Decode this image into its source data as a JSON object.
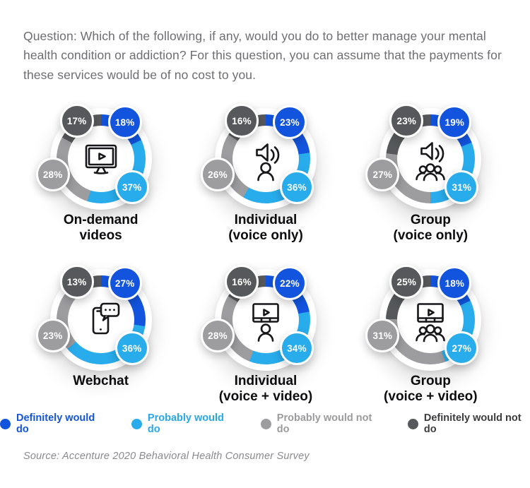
{
  "question": "Question: Which of the following, if any, would you do to better manage your mental health condition or addiction? For this question, you can assume that the payments for these services would be of no cost to you.",
  "source": "Source: Accenture 2020 Behavioral Health Consumer Survey",
  "colors": {
    "definitely_would_do": "#1254dd",
    "probably_would_do": "#29acec",
    "probably_would_not_do": "#9d9da0",
    "definitely_would_not_do": "#57585b"
  },
  "legend": [
    {
      "label": "Definitely would do",
      "color": "#1254dd",
      "text_color": "#1254dd"
    },
    {
      "label": "Probably would do",
      "color": "#29acec",
      "text_color": "#29a7e8"
    },
    {
      "label": "Probably would not do",
      "color": "#9d9da0",
      "text_color": "#9b9b9e"
    },
    {
      "label": "Definitely would not do",
      "color": "#57585b",
      "text_color": "#3c3c3f"
    }
  ],
  "chart_data": {
    "type": "pie",
    "subtype": "donut-grid",
    "unit": "percent",
    "segment_order": [
      "definitely_would_do",
      "probably_would_do",
      "probably_would_not_do",
      "definitely_would_not_do"
    ],
    "segment_labels": [
      "Definitely would do",
      "Probably would do",
      "Probably would not do",
      "Definitely would not do"
    ],
    "charts": [
      {
        "label_line1": "On-demand",
        "label_line2": "videos",
        "icon": "tv-play-icon",
        "values": {
          "definitely_would_do": 18,
          "probably_would_do": 37,
          "probably_would_not_do": 28,
          "definitely_would_not_do": 17
        }
      },
      {
        "label_line1": "Individual",
        "label_line2": "(voice only)",
        "icon": "speaker-person-icon",
        "values": {
          "definitely_would_do": 23,
          "probably_would_do": 36,
          "probably_would_not_do": 26,
          "definitely_would_not_do": 16
        }
      },
      {
        "label_line1": "Group",
        "label_line2": "(voice only)",
        "icon": "speaker-group-icon",
        "values": {
          "definitely_would_do": 19,
          "probably_would_do": 31,
          "probably_would_not_do": 27,
          "definitely_would_not_do": 23
        }
      },
      {
        "label_line1": "Webchat",
        "label_line2": "",
        "icon": "phone-chat-icon",
        "values": {
          "definitely_would_do": 27,
          "probably_would_do": 36,
          "probably_would_not_do": 23,
          "definitely_would_not_do": 13
        }
      },
      {
        "label_line1": "Individual",
        "label_line2": "(voice + video)",
        "icon": "screen-person-icon",
        "values": {
          "definitely_would_do": 22,
          "probably_would_do": 34,
          "probably_would_not_do": 28,
          "definitely_would_not_do": 16
        }
      },
      {
        "label_line1": "Group",
        "label_line2": "(voice + video)",
        "icon": "screen-group-icon",
        "values": {
          "definitely_would_do": 18,
          "probably_would_do": 27,
          "probably_would_not_do": 31,
          "definitely_would_not_do": 25
        }
      }
    ]
  }
}
